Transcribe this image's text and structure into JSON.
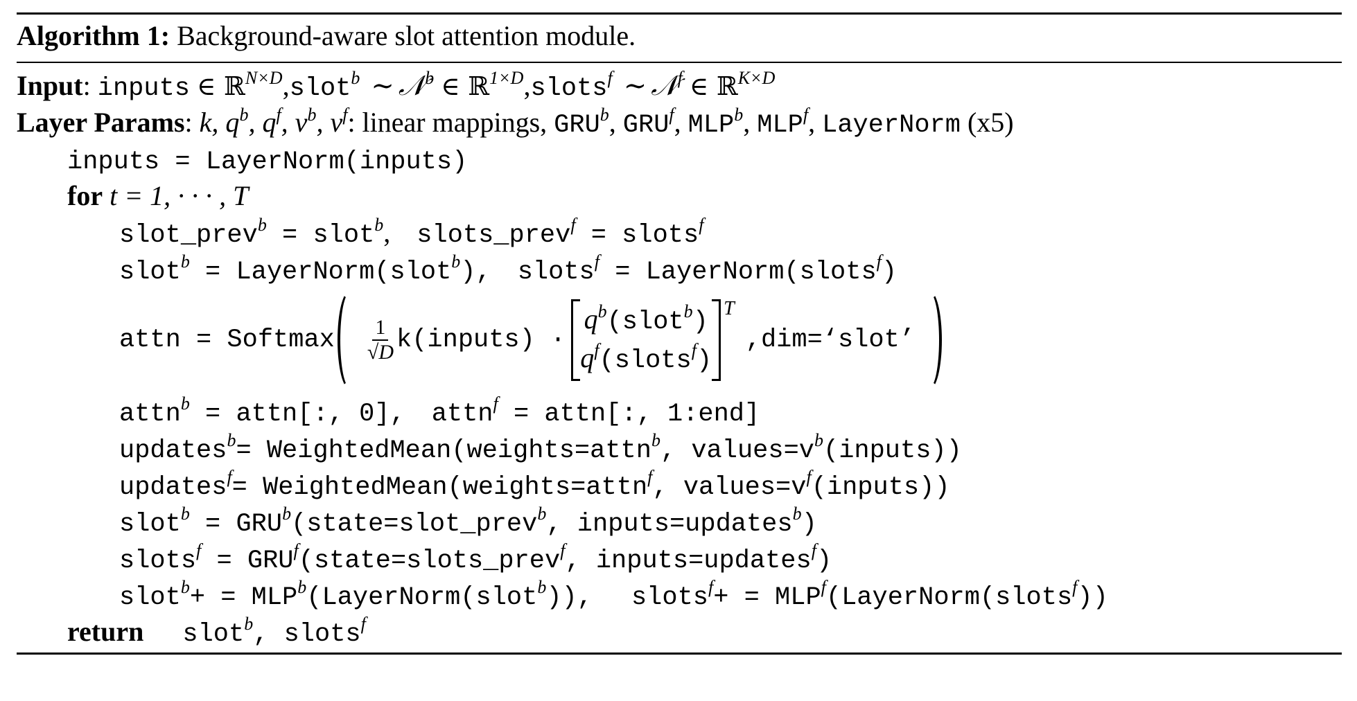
{
  "algorithm": {
    "caption_bold": "Algorithm 1:",
    "caption_text": "Background-aware slot attention module."
  },
  "input": {
    "label": "Input",
    "colon": ":",
    "inputs": "inputs",
    "in1": "∈ ℝ",
    "sup1": "N×D",
    "comma1": ",",
    "slot": "slot",
    "slot_sup": "b",
    "tilde1": "∼",
    "N1": "𝒩",
    "N1_sup": "b",
    "in2": "∈ ℝ",
    "sup2": "1×D",
    "comma2": ",",
    "slots": "slots",
    "slots_sup": "f",
    "tilde2": "∼",
    "N2": "𝒩",
    "N2_sup": "f",
    "in3": "∈ ℝ",
    "sup3": "K×D"
  },
  "params": {
    "label": "Layer Params",
    "colon": ":",
    "vars": "k, q",
    "qb": "b",
    "qf_pre": ", q",
    "qf": "f",
    "vb_pre": ", v",
    "vb": "b",
    "vf_pre": ", v",
    "vf": "f",
    "text": ": linear mappings,",
    "gru": "GRU",
    "gru_b": "b",
    "gru2": "GRU",
    "gru_f": "f",
    "mlp": "MLP",
    "mlp_b": "b",
    "mlp2": "MLP",
    "mlp_f": "f",
    "layernorm": "LayerNorm",
    "x5": "(x5)"
  },
  "lines": {
    "l1": "inputs = LayerNorm(inputs)",
    "for_kw": "for",
    "for_expr": "t = 1, · · · , T",
    "l3a": "slot_prev",
    "l3b": " = slot",
    "l3c": ",",
    "l3d": "slots_prev",
    "l3e": " = slots",
    "l4a": "slot",
    "l4b": " = LayerNorm(slot",
    "l4c": "),",
    "l4d": "slots",
    "l4e": " = LayerNorm(slots",
    "l4f": ")",
    "attn_lhs": "attn = Softmax",
    "frac_num": "1",
    "frac_den": "√D",
    "k_inputs": "k(inputs) ·",
    "qb_cell": "q",
    "qb_arg": "(slot",
    "qb_close": ")",
    "qf_cell": "q",
    "qf_arg": "(slots",
    "qf_close": ")",
    "T": "T",
    "dim": ",dim=‘slot’",
    "l6a": "attn",
    "l6b": " = attn[:, 0],",
    "l6c": "attn",
    "l6d": " = attn[:, 1:end]",
    "l7a": "updates",
    "l7b": "= WeightedMean(weights=attn",
    "l7c": ", values=v",
    "l7d": "(inputs))",
    "l8a": "updates",
    "l8b": "= WeightedMean(weights=attn",
    "l8c": ", values=v",
    "l8d": "(inputs))",
    "l9a": "slot",
    "l9b": " = GRU",
    "l9c": "(state=slot_prev",
    "l9d": ", inputs=updates",
    "l9e": ")",
    "l10a": "slots",
    "l10b": " = GRU",
    "l10c": "(state=slots_prev",
    "l10d": ", inputs=updates",
    "l10e": ")",
    "l11a": "slot",
    "l11b": "+ = MLP",
    "l11c": "(LayerNorm(slot",
    "l11d": ")),",
    "l11e": "slots",
    "l11f": "+ = MLP",
    "l11g": "(LayerNorm(slots",
    "l11h": "))",
    "return_kw": "return",
    "ret_a": "slot",
    "ret_b": ", slots"
  },
  "sup": {
    "b": "b",
    "f": "f"
  }
}
